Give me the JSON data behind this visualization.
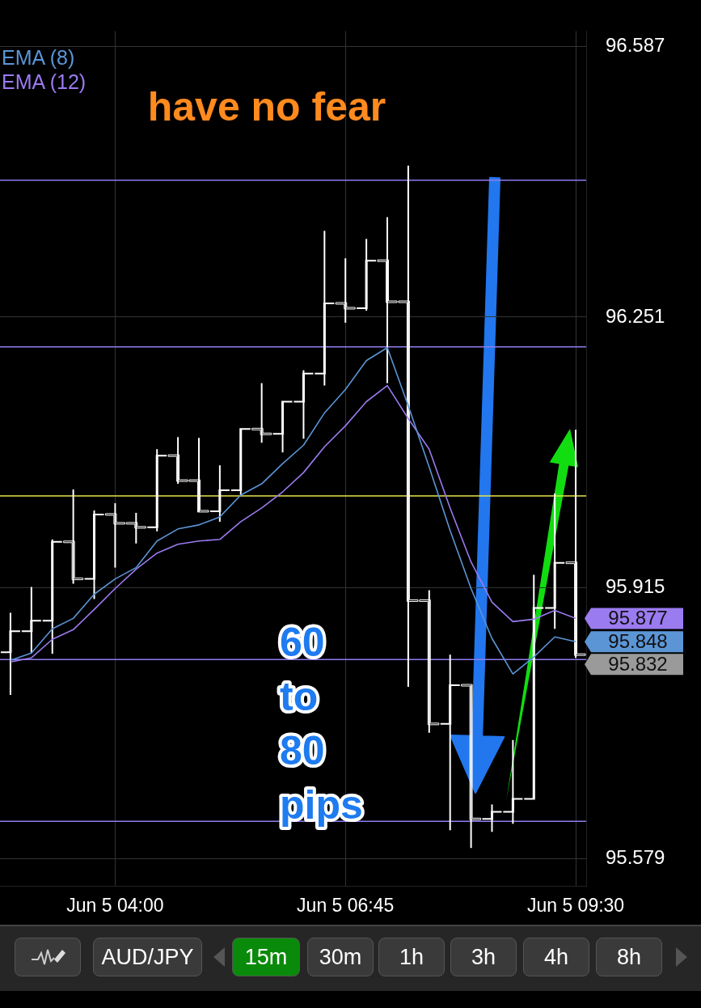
{
  "chart_data": [
    {
      "type": "candlestick",
      "color": "#ffffff",
      "categories": [
        null,
        null,
        null,
        null,
        null,
        "Jun 5 04:00",
        null,
        null,
        null,
        null,
        null,
        null,
        null,
        null,
        null,
        null,
        "Jun 5 06:45",
        null,
        null,
        null,
        null,
        null,
        null,
        null,
        null,
        null,
        null,
        "Jun 5 09:30"
      ],
      "ohlc": [
        [
          95.835,
          95.884,
          95.782,
          95.861
        ],
        [
          95.861,
          95.916,
          95.834,
          95.874
        ],
        [
          95.874,
          95.975,
          95.833,
          95.972
        ],
        [
          95.972,
          96.037,
          95.92,
          95.926
        ],
        [
          95.926,
          96.011,
          95.901,
          96.006
        ],
        [
          96.006,
          96.02,
          95.94,
          95.995
        ],
        [
          95.995,
          96.008,
          95.97,
          95.99
        ],
        [
          95.99,
          96.087,
          95.985,
          96.079
        ],
        [
          96.079,
          96.102,
          96.044,
          96.048
        ],
        [
          96.048,
          96.101,
          96.009,
          96.01
        ],
        [
          96.01,
          96.067,
          95.997,
          96.036
        ],
        [
          96.036,
          96.112,
          96.029,
          96.112
        ],
        [
          96.112,
          96.169,
          96.095,
          96.106
        ],
        [
          96.106,
          96.146,
          96.083,
          96.146
        ],
        [
          96.146,
          96.185,
          96.1,
          96.181
        ],
        [
          96.181,
          96.358,
          96.166,
          96.268
        ],
        [
          96.268,
          96.324,
          96.244,
          96.262
        ],
        [
          96.262,
          96.348,
          96.259,
          96.321
        ],
        [
          96.321,
          96.375,
          96.169,
          96.27
        ],
        [
          96.27,
          96.439,
          95.792,
          95.899
        ],
        [
          95.899,
          95.912,
          95.735,
          95.746
        ],
        [
          95.746,
          95.832,
          95.614,
          95.794
        ],
        [
          95.794,
          95.794,
          95.592,
          95.628
        ],
        [
          95.628,
          95.646,
          95.612,
          95.637
        ],
        [
          95.637,
          95.726,
          95.622,
          95.653
        ],
        [
          95.653,
          95.931,
          95.653,
          95.89
        ],
        [
          95.89,
          96.032,
          95.864,
          95.946
        ],
        [
          95.946,
          96.111,
          95.828,
          95.832
        ]
      ],
      "series": [
        {
          "name": "EMA (8)",
          "type": "line",
          "color": "#5b95d6",
          "values": [
            95.825,
            95.834,
            95.864,
            95.877,
            95.907,
            95.926,
            95.94,
            95.973,
            95.988,
            95.993,
            96.003,
            96.03,
            96.044,
            96.069,
            96.092,
            96.132,
            96.161,
            96.197,
            96.213,
            96.141,
            96.065,
            95.986,
            95.914,
            95.852,
            95.808,
            95.829,
            95.854,
            95.848
          ]
        },
        {
          "name": "EMA (12)",
          "type": "line",
          "color": "#9b7bf0",
          "values": [
            95.823,
            95.828,
            95.851,
            95.863,
            95.888,
            95.914,
            95.938,
            95.958,
            95.969,
            95.973,
            95.975,
            95.997,
            96.014,
            96.034,
            96.058,
            96.09,
            96.116,
            96.146,
            96.166,
            96.125,
            96.087,
            96.014,
            95.947,
            95.897,
            95.873,
            95.876,
            95.887,
            95.877
          ]
        }
      ],
      "ylim": [
        95.545,
        96.606
      ],
      "yticks": [
        95.579,
        95.915,
        96.251,
        96.587
      ],
      "grid": true,
      "legend": "top left",
      "marker": "none",
      "ref_lines": [
        {
          "axis": "y",
          "value": 96.421,
          "color": "#8f7cf0"
        },
        {
          "axis": "y",
          "value": 96.214,
          "color": "#8f7cf0"
        },
        {
          "axis": "y",
          "value": 96.029,
          "color": "#e6e64c"
        },
        {
          "axis": "y",
          "value": 95.826,
          "color": "#8f7cf0"
        },
        {
          "axis": "y",
          "value": 95.625,
          "color": "#8f7cf0"
        }
      ],
      "annotations": [
        "have no fear",
        "60 to 80 pips",
        "95.877",
        "95.848",
        "95.832"
      ]
    },
    {
      "type": "other",
      "categories": [
        "AUD/JPY",
        "15m",
        "30m",
        "1h",
        "3h",
        "4h",
        "8h"
      ],
      "colors": [
        "#3a3a3a",
        "#0a8a0a",
        "#3a3a3a",
        "#3a3a3a",
        "#3a3a3a",
        "#3a3a3a",
        "#3a3a3a"
      ]
    }
  ]
}
